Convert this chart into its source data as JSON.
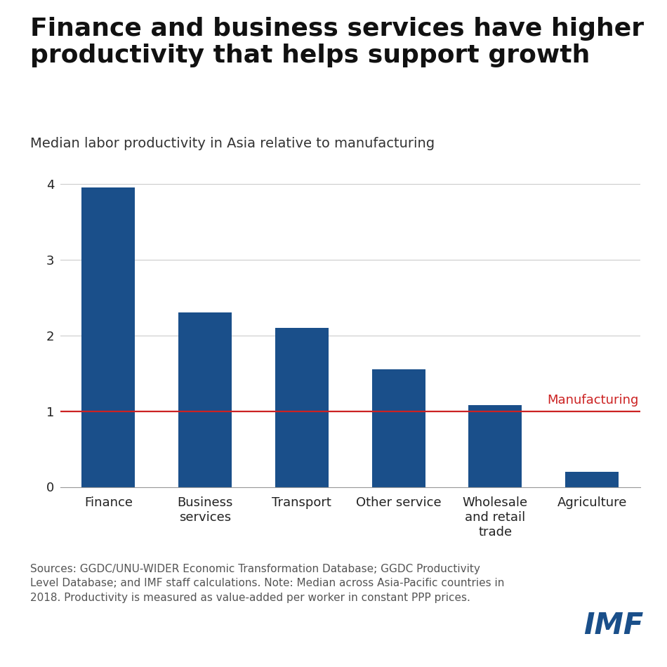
{
  "title": "Finance and business services have higher\nproductivity that helps support growth",
  "subtitle": "Median labor productivity in Asia relative to manufacturing",
  "categories": [
    "Finance",
    "Business\nservices",
    "Transport",
    "Other service",
    "Wholesale\nand retail\ntrade",
    "Agriculture"
  ],
  "values": [
    3.95,
    2.3,
    2.1,
    1.55,
    1.08,
    0.2
  ],
  "bar_color": "#1a4f8a",
  "reference_line_y": 1.0,
  "reference_line_color": "#cc2222",
  "reference_line_label": "Manufacturing",
  "ylim": [
    0,
    4.4
  ],
  "yticks": [
    0,
    1,
    2,
    3,
    4
  ],
  "footnote": "Sources: GGDC/UNU-WIDER Economic Transformation Database; GGDC Productivity\nLevel Database; and IMF staff calculations. Note: Median across Asia-Pacific countries in\n2018. Productivity is measured as value-added per worker in constant PPP prices.",
  "imf_label": "IMF",
  "imf_color": "#1a4f8a",
  "background_color": "#ffffff",
  "title_fontsize": 26,
  "subtitle_fontsize": 14,
  "tick_fontsize": 13,
  "footnote_fontsize": 11
}
